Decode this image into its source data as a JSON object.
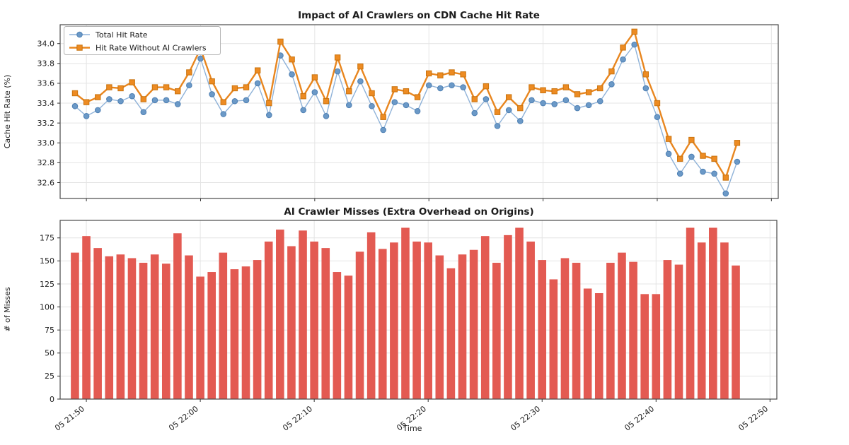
{
  "figure_title": "Impact of AI Crawlers on CDN Cache Hit Rate",
  "colors": {
    "total_hit_rate_line": "#8fb2d8",
    "total_hit_rate_marker": "#6b99c7",
    "without_crawlers": "#e8861f",
    "bars": "#e35a52",
    "grid": "#e4e4e4",
    "spine": "#4a4a4a"
  },
  "chart_data": [
    {
      "type": "line",
      "title": "Impact of AI Crawlers on CDN Cache Hit Rate",
      "xlabel": "",
      "ylabel": "Cache Hit Rate (%)",
      "grid": true,
      "legend_position": "upper-left",
      "xlim": [
        -1.3,
        61.6
      ],
      "ylim": [
        32.44,
        34.19
      ],
      "y_ticks": [
        32.6,
        32.8,
        33.0,
        33.2,
        33.4,
        33.6,
        33.8,
        34.0
      ],
      "y_tick_decimals": 1,
      "x_tick_positions": [
        1,
        11,
        21,
        31,
        41,
        51,
        61
      ],
      "x_tick_labels": [
        "05 21:50",
        "05 22:00",
        "05 22:10",
        "05 22:20",
        "05 22:30",
        "05 22:40",
        "05 22:50"
      ],
      "series": [
        {
          "name": "Total Hit Rate",
          "marker": "circle",
          "values": [
            33.37,
            33.27,
            33.33,
            33.44,
            33.42,
            33.47,
            33.31,
            33.43,
            33.43,
            33.39,
            33.58,
            33.85,
            33.49,
            33.29,
            33.42,
            33.43,
            33.6,
            33.28,
            33.88,
            33.69,
            33.33,
            33.51,
            33.27,
            33.72,
            33.38,
            33.62,
            33.37,
            33.13,
            33.41,
            33.38,
            33.32,
            33.58,
            33.55,
            33.58,
            33.56,
            33.3,
            33.44,
            33.17,
            33.33,
            33.22,
            33.43,
            33.4,
            33.39,
            33.43,
            33.35,
            33.38,
            33.42,
            33.59,
            33.84,
            33.99,
            33.55,
            33.26,
            32.89,
            32.69,
            32.86,
            32.71,
            32.69,
            32.49,
            32.81
          ]
        },
        {
          "name": "Hit Rate Without AI Crawlers",
          "marker": "square",
          "values": [
            33.5,
            33.41,
            33.46,
            33.56,
            33.55,
            33.61,
            33.44,
            33.56,
            33.56,
            33.52,
            33.71,
            33.95,
            33.62,
            33.41,
            33.55,
            33.56,
            33.73,
            33.4,
            34.02,
            33.84,
            33.47,
            33.66,
            33.42,
            33.86,
            33.52,
            33.77,
            33.5,
            33.26,
            33.54,
            33.52,
            33.46,
            33.7,
            33.68,
            33.71,
            33.69,
            33.44,
            33.57,
            33.31,
            33.46,
            33.35,
            33.56,
            33.53,
            33.52,
            33.56,
            33.49,
            33.51,
            33.55,
            33.72,
            33.96,
            34.12,
            33.69,
            33.4,
            33.04,
            32.84,
            33.03,
            32.87,
            32.84,
            32.65,
            33.0
          ]
        }
      ]
    },
    {
      "type": "bar",
      "title": "AI Crawler Misses (Extra Overhead on Origins)",
      "xlabel": "Time",
      "ylabel": "# of Misses",
      "grid": true,
      "xlim": [
        -1.3,
        61.6
      ],
      "ylim": [
        0,
        194
      ],
      "y_ticks": [
        0,
        25,
        50,
        75,
        100,
        125,
        150,
        175
      ],
      "y_tick_decimals": 0,
      "x_tick_positions": [
        1,
        11,
        21,
        31,
        41,
        51,
        61
      ],
      "x_tick_labels": [
        "05 21:50",
        "05 22:00",
        "05 22:10",
        "05 22:20",
        "05 22:30",
        "05 22:40",
        "05 22:50"
      ],
      "values": [
        159,
        177,
        164,
        155,
        157,
        153,
        148,
        157,
        147,
        180,
        156,
        133,
        138,
        159,
        141,
        144,
        151,
        171,
        184,
        166,
        183,
        171,
        164,
        138,
        134,
        160,
        181,
        163,
        170,
        186,
        171,
        170,
        156,
        142,
        157,
        162,
        177,
        148,
        178,
        186,
        171,
        151,
        130,
        153,
        148,
        120,
        115,
        148,
        159,
        149,
        114,
        114,
        151,
        146,
        186,
        170,
        186,
        170,
        145
      ]
    }
  ]
}
